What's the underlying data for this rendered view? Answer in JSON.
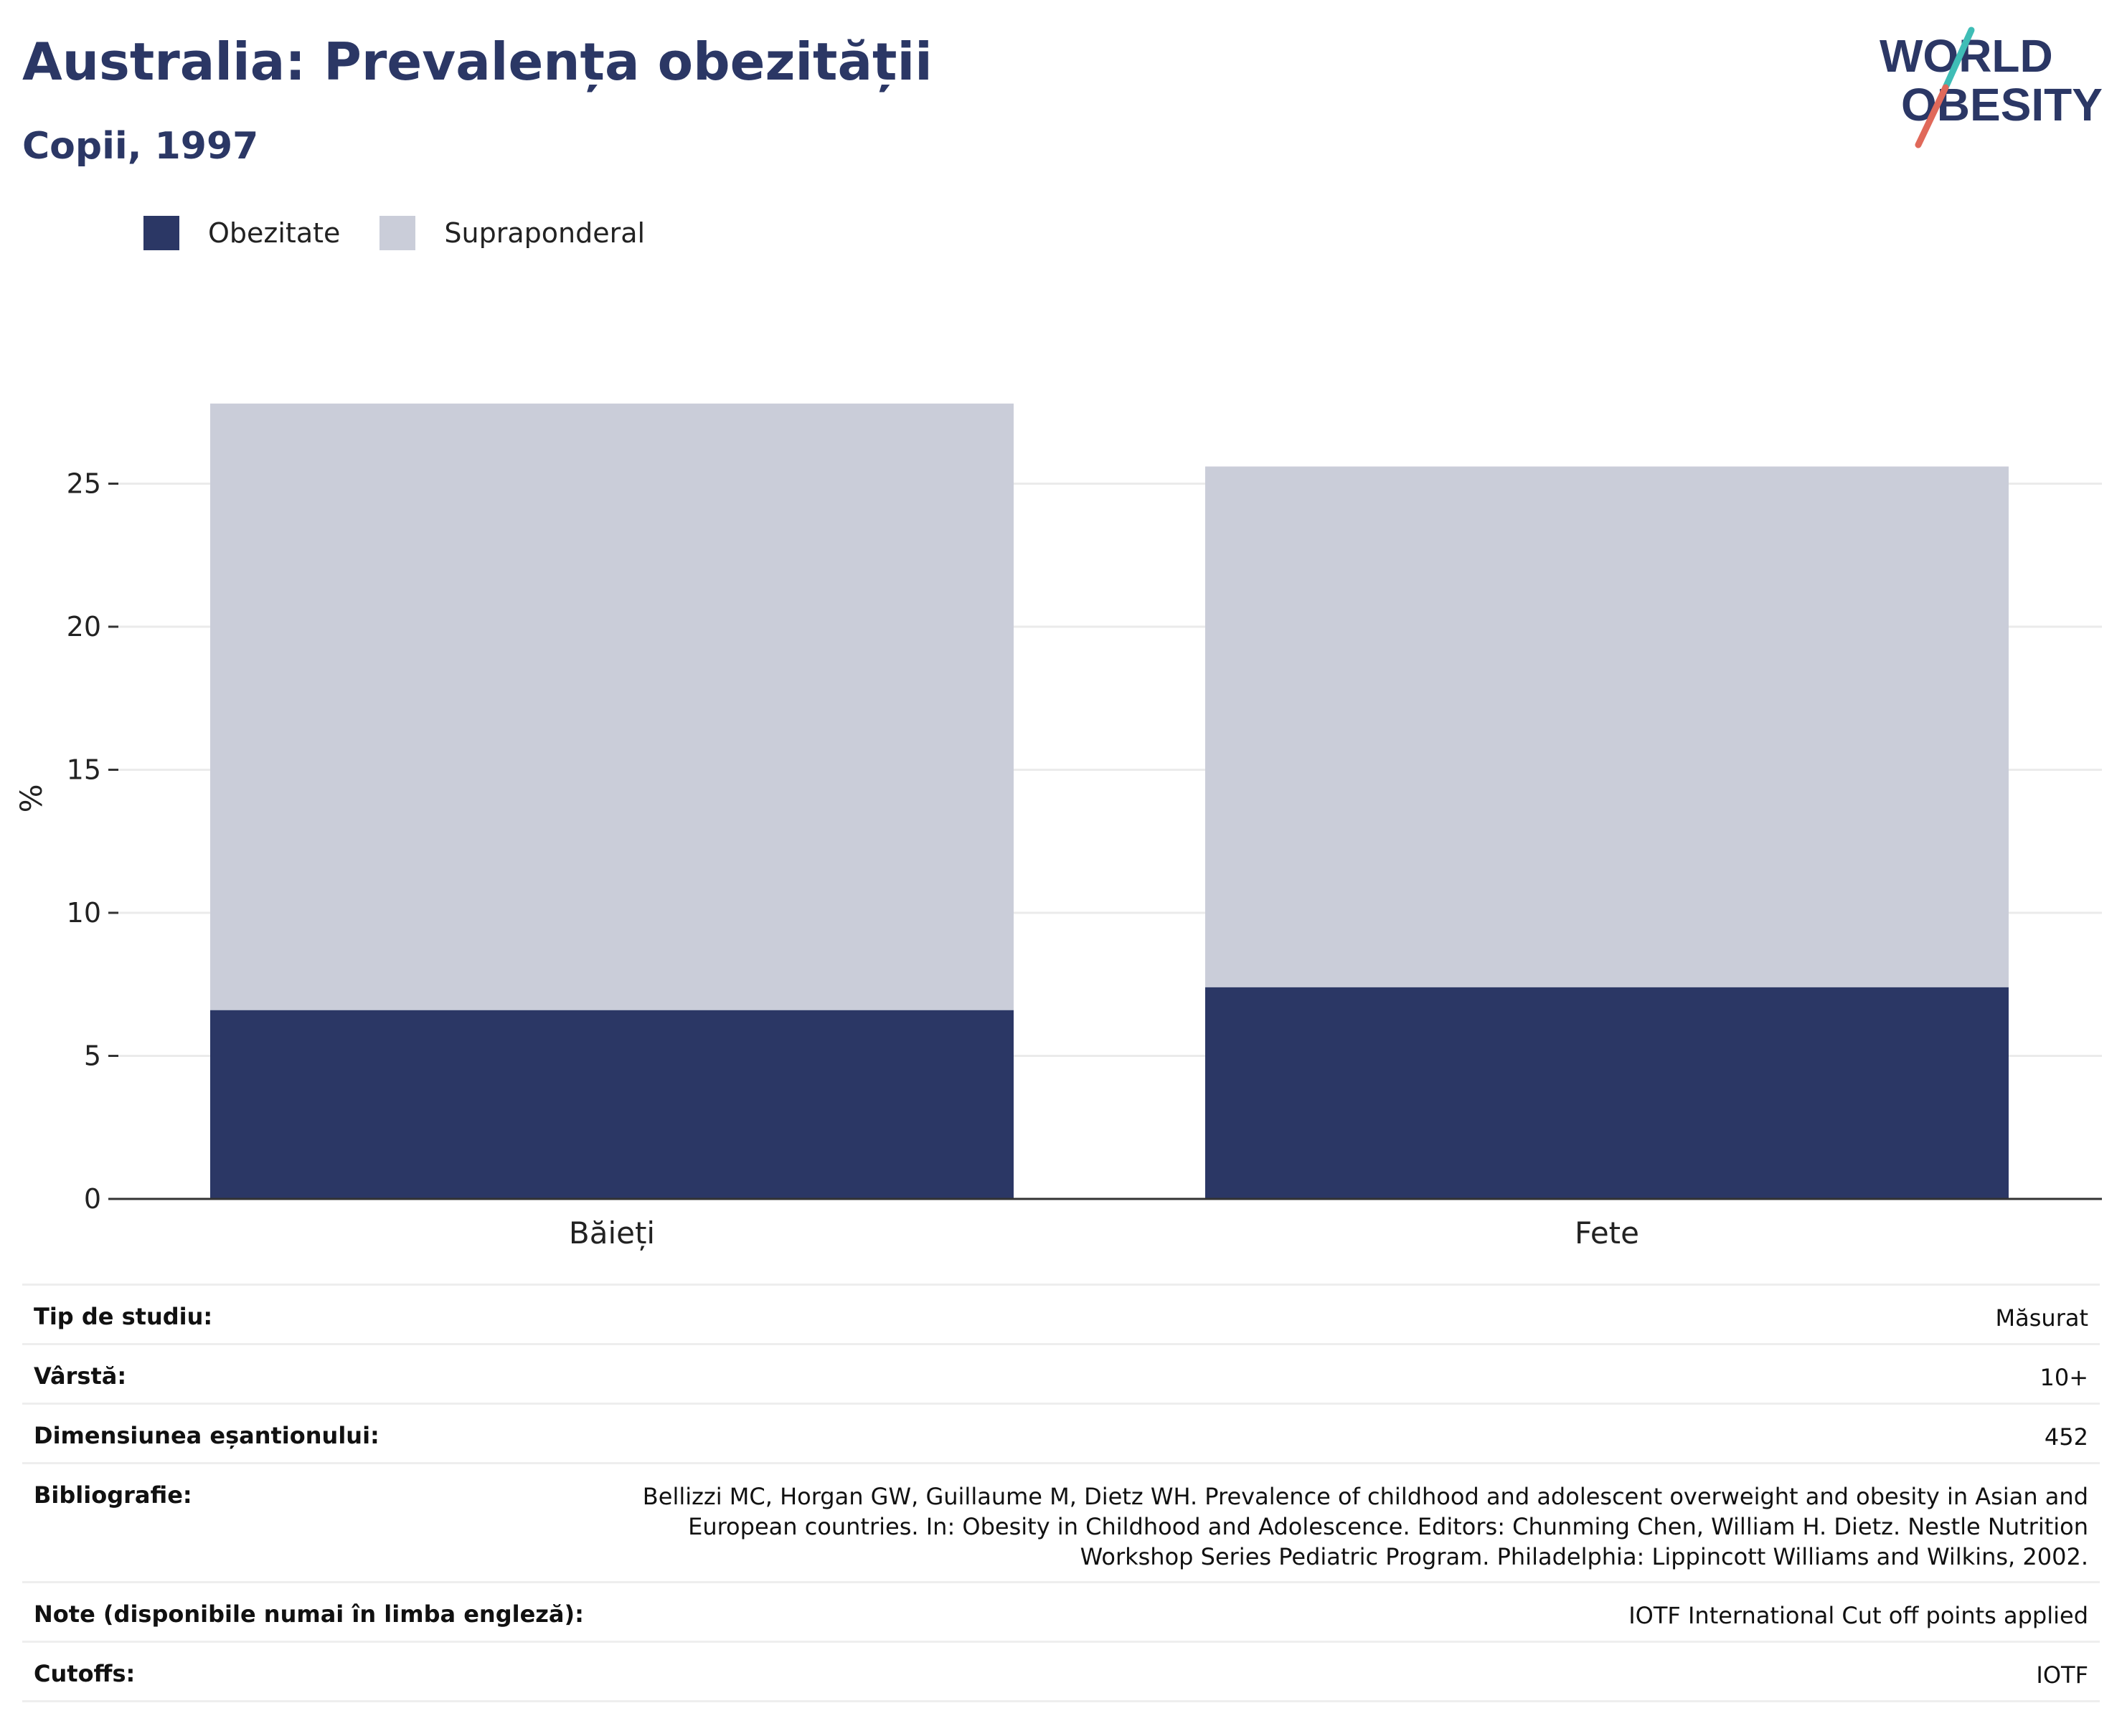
{
  "header": {
    "title": "Australia: Prevalența obezității",
    "subtitle": "Copii, 1997"
  },
  "logo": {
    "line1": "WORLD",
    "line2": "OBESITY",
    "colors": {
      "text": "#2b3765",
      "slash_top": "#3fbdb6",
      "slash_bottom": "#e0695a"
    }
  },
  "legend": {
    "items": [
      {
        "label": "Obezitate",
        "color": "#2b3765"
      },
      {
        "label": "Supraponderal",
        "color": "#cacdd9"
      }
    ]
  },
  "chart_data": {
    "type": "bar",
    "stacked": true,
    "categories": [
      "Băieți",
      "Fete"
    ],
    "series": [
      {
        "name": "Obezitate",
        "color": "#2b3765",
        "values": [
          6.6,
          7.4
        ]
      },
      {
        "name": "Supraponderal",
        "color": "#cacdd9",
        "values": [
          21.2,
          18.2
        ]
      }
    ],
    "ylabel": "%",
    "ylim": [
      0,
      28
    ],
    "yticks": [
      0,
      5,
      10,
      15,
      20,
      25
    ],
    "grid": true,
    "legend_position": "top-left"
  },
  "meta": {
    "rows": [
      {
        "label": "Tip de studiu:",
        "value": "Măsurat"
      },
      {
        "label": "Vârstă:",
        "value": "10+"
      },
      {
        "label": "Dimensiunea eșantionului:",
        "value": "452"
      },
      {
        "label": "Bibliografie:",
        "value": "Bellizzi MC, Horgan GW, Guillaume M, Dietz WH. Prevalence of childhood and adolescent overweight and obesity in Asian and European countries. In: Obesity in Childhood and Adolescence. Editors: Chunming Chen, William H. Dietz. Nestle Nutrition Workshop Series Pediatric Program. Philadelphia: Lippincott Williams and Wilkins, 2002."
      },
      {
        "label": "Note (disponibile numai în limba engleză):",
        "value": "IOTF International Cut off points applied"
      },
      {
        "label": "Cutoffs:",
        "value": "IOTF"
      }
    ]
  }
}
